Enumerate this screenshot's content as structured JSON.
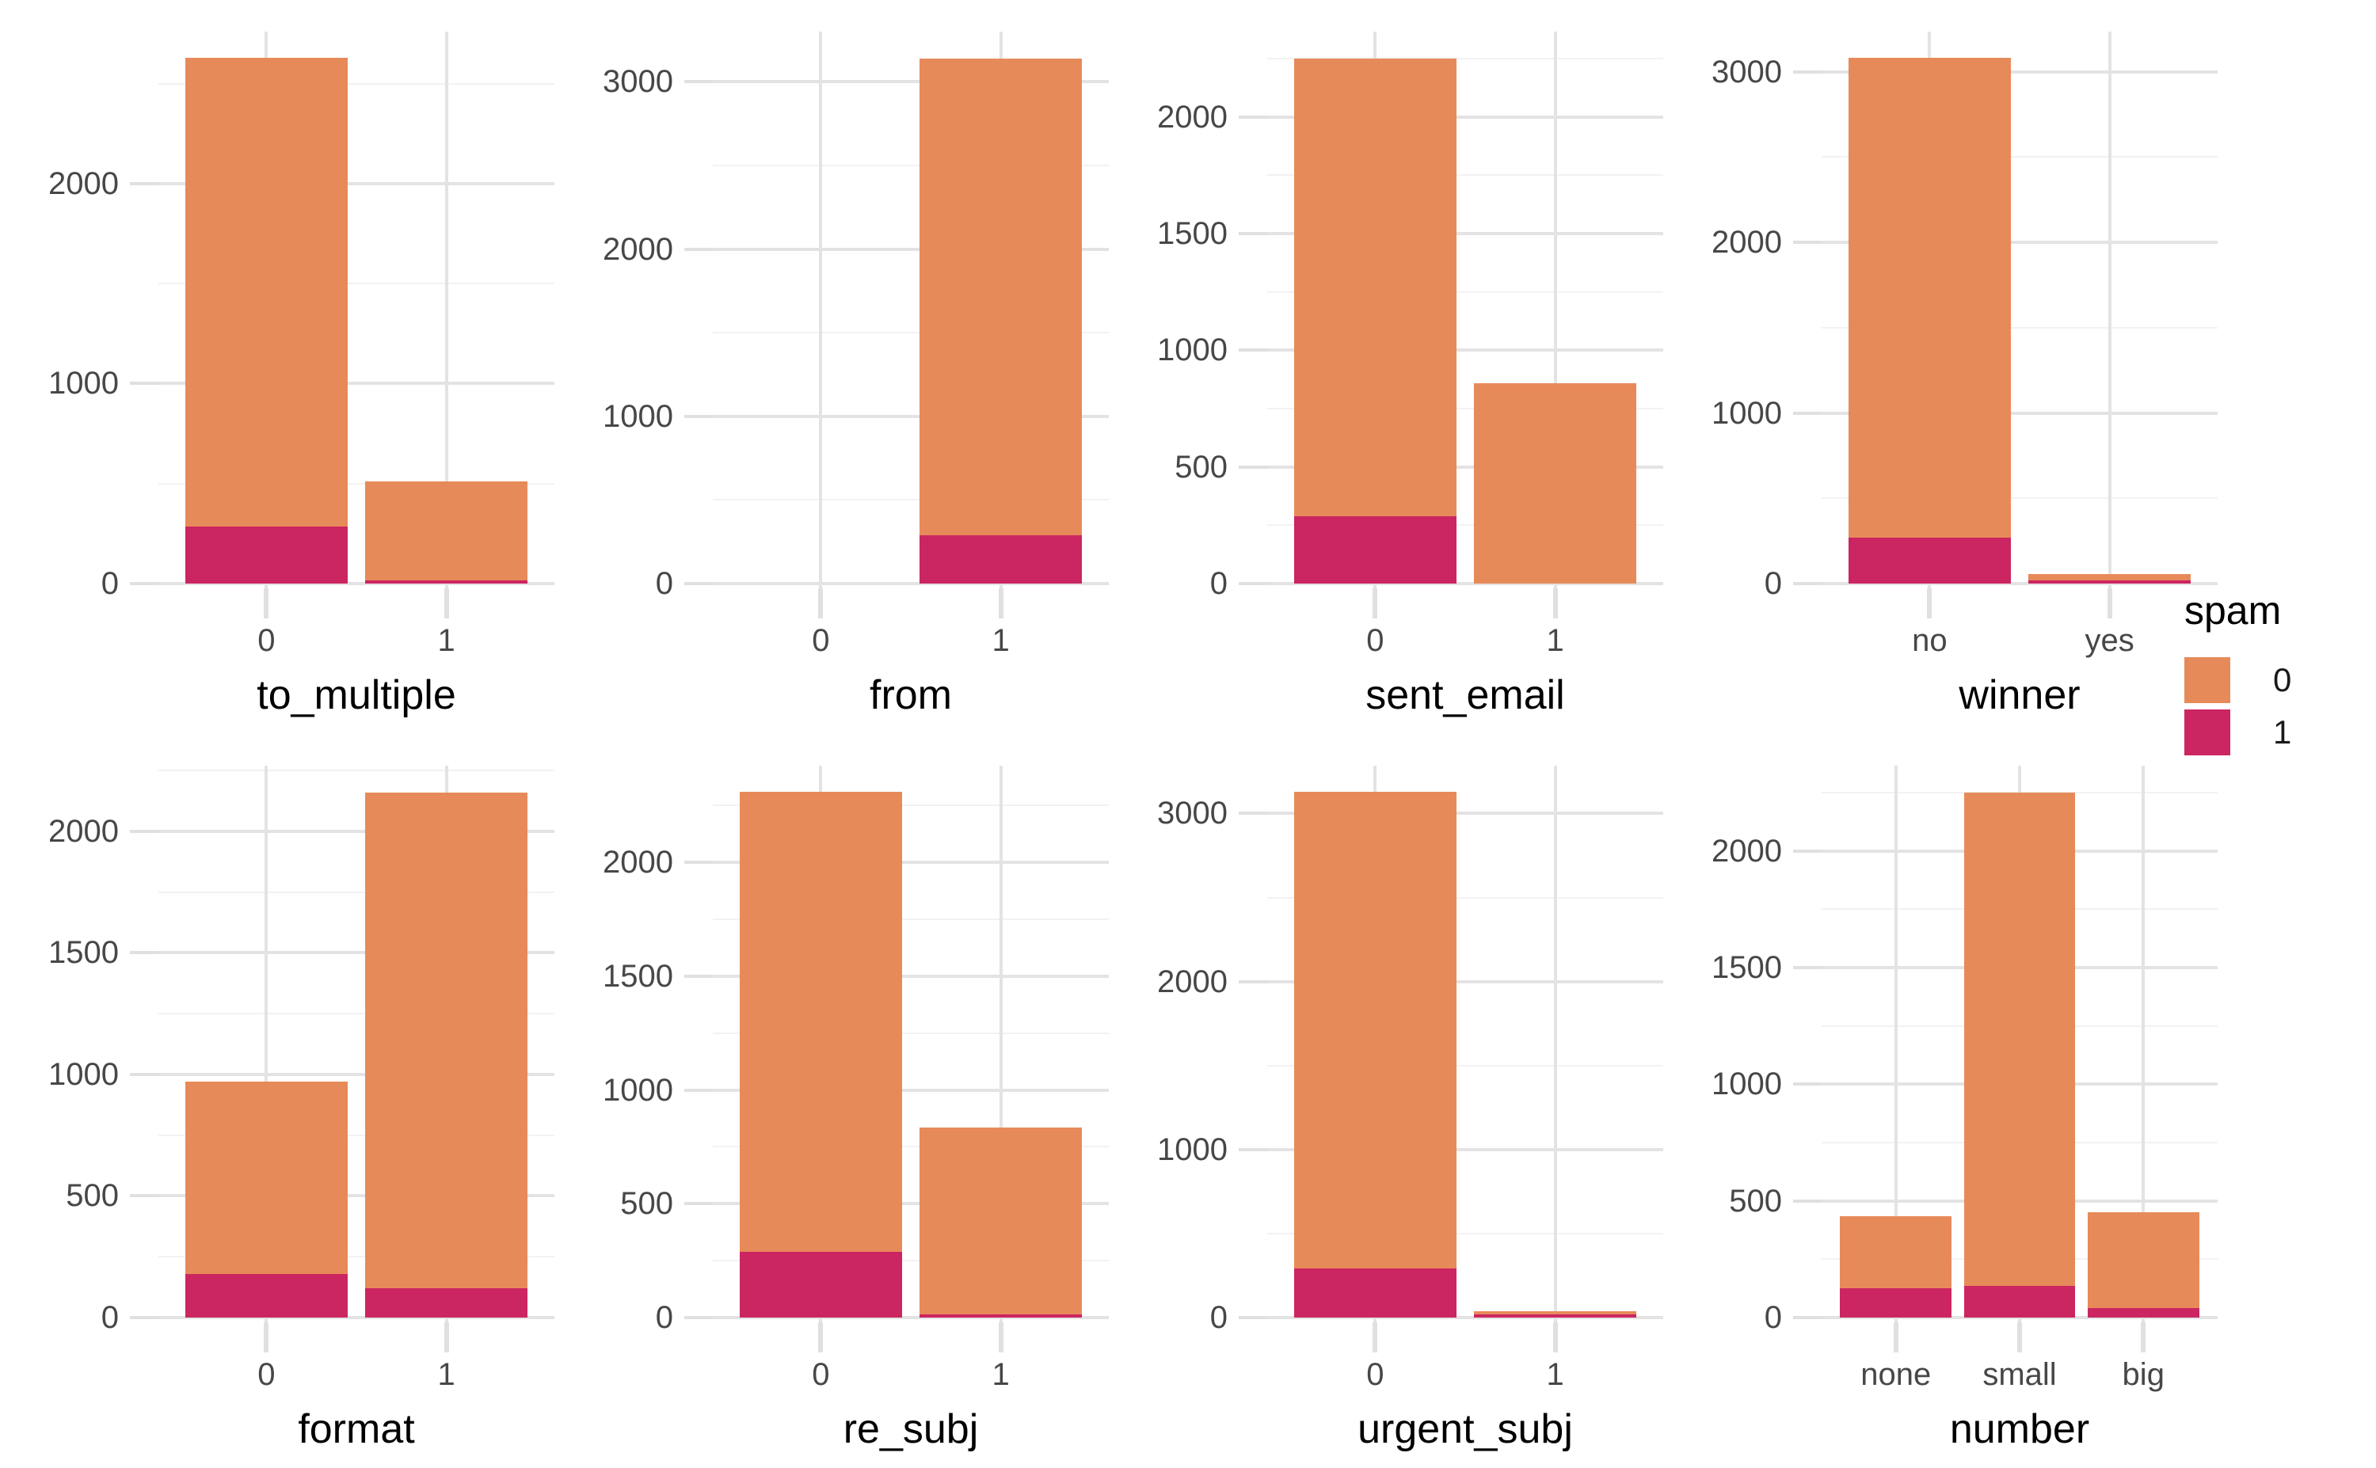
{
  "colors": {
    "spam0_orange": "#E78A5A",
    "spam1_pink": "#CB2562",
    "grid_major": "#E3E3E3",
    "grid_minor": "#F2F2F2",
    "tick_stub": "#E0E0E0",
    "axis_text": "#474747",
    "title_text": "#000000",
    "background": "#FFFFFF"
  },
  "chart_data": {
    "type": "bar",
    "stacked": true,
    "layout": "2x4 faceted grid, free y scales, legend right",
    "grid": "major and minor horizontal gridlines on, vertical major gridlines at category centers",
    "legend": {
      "title": "spam",
      "position": "right",
      "entries": [
        {
          "label": "0",
          "color": "#E78A5A"
        },
        {
          "label": "1",
          "color": "#CB2562"
        }
      ]
    },
    "series_note": "values estimated from pixels; spam=1 segment stacked at bottom, spam=0 on top",
    "facets": [
      {
        "title": "to_multiple",
        "categories": [
          "0",
          "1"
        ],
        "y_ticks": [
          0,
          1000,
          2000
        ],
        "y_minor": [
          500,
          1500,
          2500
        ],
        "y_max": 2760,
        "bars": [
          {
            "category": "0",
            "spam1": 285,
            "spam0": 2345
          },
          {
            "category": "1",
            "spam1": 10,
            "spam0": 495
          }
        ]
      },
      {
        "title": "from",
        "categories": [
          "0",
          "1"
        ],
        "y_ticks": [
          0,
          1000,
          2000,
          3000
        ],
        "y_minor": [
          500,
          1500,
          2500
        ],
        "y_max": 3300,
        "bars": [
          {
            "category": "0",
            "spam1": 0,
            "spam0": 0
          },
          {
            "category": "1",
            "spam1": 290,
            "spam0": 2850
          }
        ]
      },
      {
        "title": "sent_email",
        "categories": [
          "0",
          "1"
        ],
        "y_ticks": [
          0,
          500,
          1000,
          1500,
          2000
        ],
        "y_minor": [
          250,
          750,
          1250,
          1750,
          2250
        ],
        "y_max": 2365,
        "bars": [
          {
            "category": "0",
            "spam1": 290,
            "spam0": 1960
          },
          {
            "category": "1",
            "spam1": 0,
            "spam0": 860
          }
        ]
      },
      {
        "title": "winner",
        "categories": [
          "no",
          "yes"
        ],
        "y_ticks": [
          0,
          1000,
          2000,
          3000
        ],
        "y_minor": [
          500,
          1500,
          2500
        ],
        "y_max": 3235,
        "bars": [
          {
            "category": "no",
            "spam1": 270,
            "spam0": 2810
          },
          {
            "category": "yes",
            "spam1": 15,
            "spam0": 35
          }
        ]
      },
      {
        "title": "format",
        "categories": [
          "0",
          "1"
        ],
        "y_ticks": [
          0,
          500,
          1000,
          1500,
          2000
        ],
        "y_minor": [
          250,
          750,
          1250,
          1750,
          2250
        ],
        "y_max": 2270,
        "bars": [
          {
            "category": "0",
            "spam1": 180,
            "spam0": 790
          },
          {
            "category": "1",
            "spam1": 120,
            "spam0": 2040
          }
        ]
      },
      {
        "title": "re_subj",
        "categories": [
          "0",
          "1"
        ],
        "y_ticks": [
          0,
          500,
          1000,
          1500,
          2000
        ],
        "y_minor": [
          250,
          750,
          1250,
          1750,
          2250
        ],
        "y_max": 2425,
        "bars": [
          {
            "category": "0",
            "spam1": 290,
            "spam0": 2020
          },
          {
            "category": "1",
            "spam1": 8,
            "spam0": 822
          }
        ]
      },
      {
        "title": "urgent_subj",
        "categories": [
          "0",
          "1"
        ],
        "y_ticks": [
          0,
          1000,
          2000,
          3000
        ],
        "y_minor": [
          500,
          1500,
          2500
        ],
        "y_max": 3285,
        "bars": [
          {
            "category": "0",
            "spam1": 290,
            "spam0": 2840
          },
          {
            "category": "1",
            "spam1": 1,
            "spam0": 6
          }
        ]
      },
      {
        "title": "number",
        "categories": [
          "none",
          "small",
          "big"
        ],
        "y_ticks": [
          0,
          500,
          1000,
          1500,
          2000
        ],
        "y_minor": [
          250,
          750,
          1250,
          1750,
          2250
        ],
        "y_max": 2365,
        "bars": [
          {
            "category": "none",
            "spam1": 125,
            "spam0": 310
          },
          {
            "category": "small",
            "spam1": 135,
            "spam0": 2115
          },
          {
            "category": "big",
            "spam1": 40,
            "spam0": 410
          }
        ]
      }
    ]
  }
}
